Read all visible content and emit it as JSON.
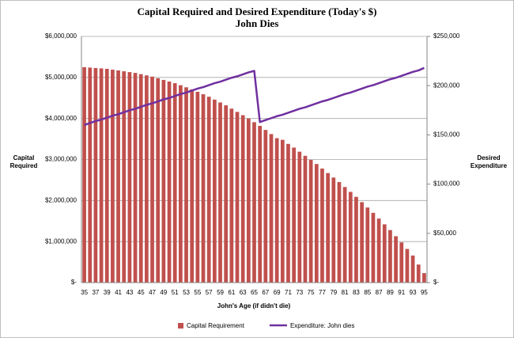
{
  "chart_data": {
    "type": "bar_line",
    "title": "Capital Required and Desired Expenditure (Today's $)",
    "subtitle": "John Dies",
    "x_label": "John's Age (if didn't die)",
    "y_label": [
      "Capital",
      "Required"
    ],
    "y2_label": [
      "Desired",
      "Expenditure"
    ],
    "categories": [
      "35",
      null,
      "37",
      null,
      "39",
      null,
      "41",
      null,
      "43",
      null,
      "45",
      null,
      "47",
      null,
      "49",
      null,
      "51",
      null,
      "53",
      null,
      "55",
      null,
      "57",
      null,
      "59",
      null,
      "61",
      null,
      "63",
      null,
      "65",
      null,
      "67",
      null,
      "69",
      null,
      "71",
      null,
      "73",
      null,
      "75",
      null,
      "77",
      null,
      "79",
      null,
      "81",
      null,
      "83",
      null,
      "85",
      null,
      "87",
      null,
      "89",
      null,
      "91",
      null,
      "93",
      null,
      "95"
    ],
    "series": [
      {
        "name": "Capital Requirement",
        "color": "#c0504d",
        "kind": "bar",
        "values": [
          5250000,
          5240000,
          5230000,
          5220000,
          5210000,
          5190000,
          5170000,
          5150000,
          5130000,
          5110000,
          5080000,
          5050000,
          5020000,
          4980000,
          4940000,
          4900000,
          4860000,
          4810000,
          4760000,
          4710000,
          4650000,
          4590000,
          4530000,
          4460000,
          4390000,
          4320000,
          4240000,
          4160000,
          4080000,
          4000000,
          3910000,
          3820000,
          3720000,
          3620000,
          3520000,
          3480000,
          3380000,
          3290000,
          3190000,
          3090000,
          2990000,
          2890000,
          2780000,
          2670000,
          2560000,
          2450000,
          2330000,
          2210000,
          2090000,
          1960000,
          1830000,
          1700000,
          1560000,
          1420000,
          1280000,
          1130000,
          980000,
          820000,
          660000,
          440000,
          230000
        ]
      },
      {
        "name": "Expenditure: John dies",
        "color": "#7030a0",
        "kind": "line",
        "axis": "y2",
        "values": [
          160000,
          162000,
          164000,
          165500,
          167500,
          169500,
          171000,
          173000,
          175000,
          176500,
          178500,
          180500,
          182000,
          184000,
          186000,
          187500,
          189500,
          191500,
          193000,
          195000,
          197000,
          198500,
          200500,
          202500,
          204000,
          206000,
          208000,
          209500,
          211500,
          213500,
          215000,
          163000,
          165000,
          167000,
          169000,
          170500,
          172500,
          174500,
          176500,
          178000,
          180000,
          182000,
          184000,
          185500,
          187500,
          189500,
          191500,
          193000,
          195000,
          197000,
          199000,
          200500,
          202500,
          204500,
          206500,
          208000,
          210000,
          212000,
          214000,
          215500,
          218000
        ]
      }
    ],
    "ylim": [
      0,
      6000000
    ],
    "yticks": [
      {
        "value": 0,
        "label": "$-"
      },
      {
        "value": 1000000,
        "label": "$1,000,000"
      },
      {
        "value": 2000000,
        "label": "$2,000,000"
      },
      {
        "value": 3000000,
        "label": "$3,000,000"
      },
      {
        "value": 4000000,
        "label": "$4,000,000"
      },
      {
        "value": 5000000,
        "label": "$5,000,000"
      },
      {
        "value": 6000000,
        "label": "$6,000,000"
      }
    ],
    "y2lim": [
      0,
      250000
    ],
    "y2ticks": [
      {
        "value": 0,
        "label": "$-"
      },
      {
        "value": 50000,
        "label": "$50,000"
      },
      {
        "value": 100000,
        "label": "$100,000"
      },
      {
        "value": 150000,
        "label": "$150,000"
      },
      {
        "value": 200000,
        "label": "$200,000"
      },
      {
        "value": 250000,
        "label": "$250,000"
      }
    ],
    "grid": true,
    "legend": "bottom"
  }
}
